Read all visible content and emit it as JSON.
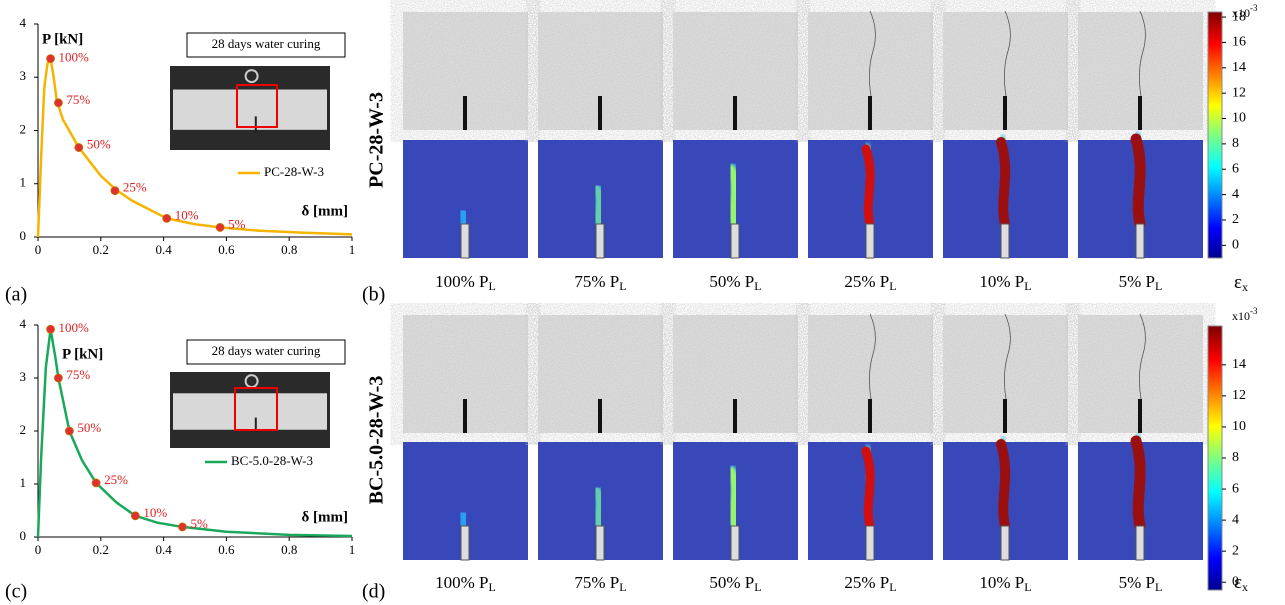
{
  "chart_data": [
    {
      "type": "line",
      "panel_label": "(a)",
      "annotation": "28 days water curing",
      "y_label": "P [kN]",
      "x_label": "δ [mm]",
      "xlim": [
        0,
        1
      ],
      "xticks": [
        0,
        0.2,
        0.4,
        0.6,
        0.8,
        1
      ],
      "ylim": [
        0,
        4
      ],
      "yticks": [
        0,
        1,
        2,
        3,
        4
      ],
      "series": [
        {
          "name": "PC-28-W-3",
          "color": "#f5b400",
          "x": [
            0,
            0.01,
            0.02,
            0.03,
            0.04,
            0.05,
            0.06,
            0.08,
            0.13,
            0.2,
            0.25,
            0.3,
            0.41,
            0.5,
            0.58,
            0.7,
            0.85,
            1
          ],
          "values": [
            0,
            1.5,
            2.8,
            3.25,
            3.35,
            3.0,
            2.55,
            2.2,
            1.68,
            1.15,
            0.88,
            0.68,
            0.35,
            0.24,
            0.18,
            0.12,
            0.08,
            0.05
          ]
        }
      ],
      "points": {
        "color": "#e03030",
        "x": [
          0.04,
          0.065,
          0.13,
          0.245,
          0.41,
          0.58
        ],
        "values": [
          3.35,
          2.52,
          1.68,
          0.87,
          0.35,
          0.18
        ],
        "labels": [
          "100%",
          "75%",
          "50%",
          "25%",
          "10%",
          "5%"
        ]
      }
    },
    {
      "type": "line",
      "panel_label": "(c)",
      "annotation": "28 days water curing",
      "y_label": "P [kN]",
      "x_label": "δ [mm]",
      "xlim": [
        0,
        1
      ],
      "xticks": [
        0,
        0.2,
        0.4,
        0.6,
        0.8,
        1
      ],
      "ylim": [
        0,
        4
      ],
      "yticks": [
        0,
        1,
        2,
        3,
        4
      ],
      "series": [
        {
          "name": "BC-5.0-28-W-3",
          "color": "#1aa85a",
          "x": [
            0,
            0.01,
            0.025,
            0.04,
            0.055,
            0.065,
            0.1,
            0.14,
            0.185,
            0.25,
            0.31,
            0.38,
            0.46,
            0.6,
            0.8,
            1
          ],
          "values": [
            0,
            1.5,
            3.2,
            3.92,
            3.4,
            3.0,
            2.0,
            1.45,
            1.02,
            0.65,
            0.4,
            0.27,
            0.19,
            0.1,
            0.04,
            0.02
          ]
        }
      ],
      "points": {
        "color": "#e03030",
        "x": [
          0.04,
          0.065,
          0.1,
          0.185,
          0.31,
          0.46
        ],
        "values": [
          3.92,
          3.0,
          2.0,
          1.02,
          0.4,
          0.19
        ],
        "labels": [
          "100%",
          "75%",
          "50%",
          "25%",
          "10%",
          "5%"
        ]
      }
    }
  ],
  "strain_panels": [
    {
      "panel_label": "(b)",
      "specimen": "PC-28-W-3",
      "load_levels": [
        {
          "text": "100% P",
          "sub": "L"
        },
        {
          "text": "75% P",
          "sub": "L"
        },
        {
          "text": "50% P",
          "sub": "L"
        },
        {
          "text": "25% P",
          "sub": "L"
        },
        {
          "text": "10% P",
          "sub": "L"
        },
        {
          "text": "5% P",
          "sub": "L"
        }
      ],
      "colorbar": {
        "ylim": [
          -1,
          18.4
        ],
        "yticks": [
          0,
          2,
          4,
          6,
          8,
          10,
          12,
          14,
          16,
          18
        ],
        "multiplier": "x10",
        "exponent": "-3",
        "symbol": "ε",
        "symbol_sub": "x"
      }
    },
    {
      "panel_label": "(d)",
      "specimen": "BC-5.0-28-W-3",
      "load_levels": [
        {
          "text": "100% P",
          "sub": "L"
        },
        {
          "text": "75% P",
          "sub": "L"
        },
        {
          "text": "50% P",
          "sub": "L"
        },
        {
          "text": "25% P",
          "sub": "L"
        },
        {
          "text": "10% P",
          "sub": "L"
        },
        {
          "text": "5% P",
          "sub": "L"
        }
      ],
      "colorbar": {
        "ylim": [
          -0.5,
          16.5
        ],
        "yticks": [
          0,
          2,
          4,
          6,
          8,
          10,
          12,
          14
        ],
        "multiplier": "x10",
        "exponent": "-3",
        "symbol": "ε",
        "symbol_sub": "x"
      }
    }
  ]
}
